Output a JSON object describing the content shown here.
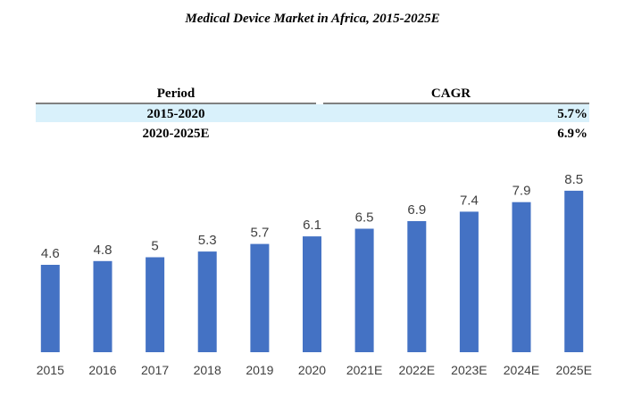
{
  "chart_data": {
    "type": "bar",
    "title": "Medical Device Market in Africa, 2015-2025E",
    "xlabel": "",
    "ylabel": "",
    "categories": [
      "2015",
      "2016",
      "2017",
      "2018",
      "2019",
      "2020",
      "2021E",
      "2022E",
      "2023E",
      "2024E",
      "2025E"
    ],
    "values": [
      4.6,
      4.8,
      5,
      5.3,
      5.7,
      6.1,
      6.5,
      6.9,
      7.4,
      7.9,
      8.5
    ],
    "value_labels": [
      "4.6",
      "4.8",
      "5",
      "5.3",
      "5.7",
      "6.1",
      "6.5",
      "6.9",
      "7.4",
      "7.9",
      "8.5"
    ],
    "ylim": [
      0,
      10
    ],
    "bar_color": "#4472C4",
    "grid": false,
    "legend": "none"
  },
  "cagr_table": {
    "headers": {
      "period": "Period",
      "cagr": "CAGR"
    },
    "rows": [
      {
        "period": "2015-2020",
        "cagr": "5.7%",
        "highlight": true
      },
      {
        "period": "2020-2025E",
        "cagr": "6.9%",
        "highlight": false
      }
    ],
    "highlight_color": "#D9F1FB"
  }
}
